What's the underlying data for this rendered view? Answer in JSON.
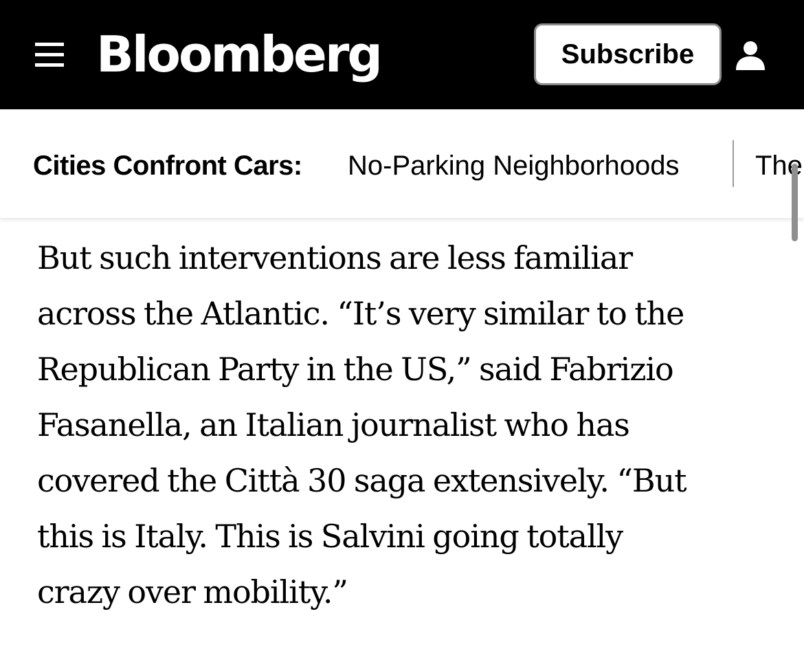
{
  "header": {
    "menu_icon": "hamburger-menu-icon",
    "logo_text": "Bloomberg",
    "subscribe_label": "Subscribe",
    "user_icon": "user-icon",
    "background_color": "#000000"
  },
  "subnav": {
    "series_label": "Cities Confront Cars:",
    "links": [
      "No-Parking Neighborhoods",
      "The"
    ]
  },
  "article": {
    "lines": [
      "But such interventions are less familiar",
      "across the Atlantic. “It’s very similar to the",
      "Republican Party in the US,” said Fabrizio",
      "Fasanella, an Italian journalist who has",
      "covered the Città 30 saga extensively. “But",
      "this is Italy. This is Salvini going totally",
      "crazy over mobility.”"
    ]
  }
}
